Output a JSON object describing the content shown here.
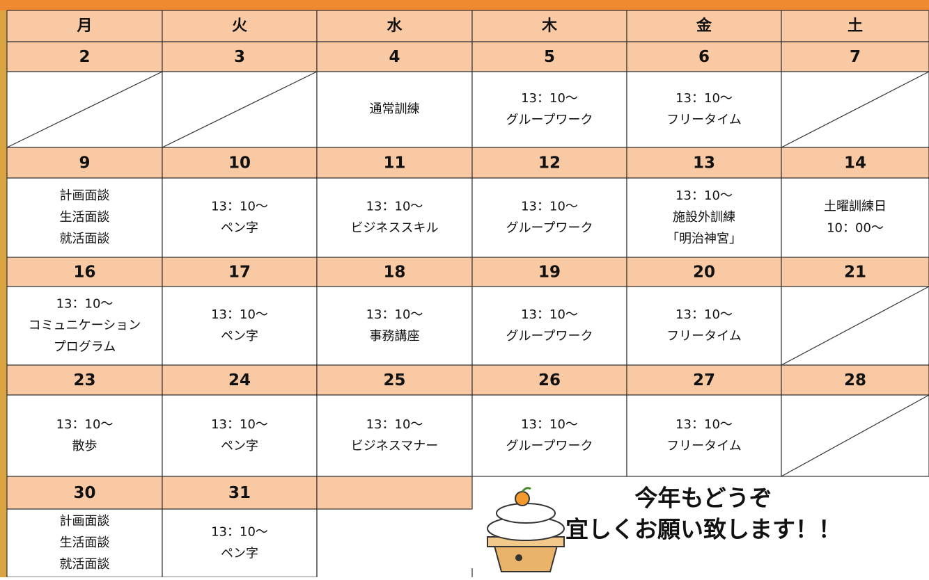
{
  "weekdays": [
    "月",
    "火",
    "水",
    "木",
    "金",
    "土"
  ],
  "weeks": [
    {
      "dates": [
        "2",
        "3",
        "4",
        "5",
        "6",
        "7"
      ],
      "cells": [
        [],
        [],
        [
          "通常訓練"
        ],
        [
          "13：10～",
          "グループワーク"
        ],
        [
          "13：10～",
          "フリータイム"
        ],
        []
      ]
    },
    {
      "dates": [
        "9",
        "10",
        "11",
        "12",
        "13",
        "14"
      ],
      "cells": [
        [
          "計画面談",
          "生活面談",
          "就活面談"
        ],
        [
          "13：10～",
          "ペン字"
        ],
        [
          "13：10～",
          "ビジネススキル"
        ],
        [
          "13：10～",
          "グループワーク"
        ],
        [
          "13：10～",
          "施設外訓練",
          "「明治神宮」"
        ],
        [
          "土曜訓練日",
          "10：00～"
        ]
      ]
    },
    {
      "dates": [
        "16",
        "17",
        "18",
        "19",
        "20",
        "21"
      ],
      "cells": [
        [
          "13：10～",
          "コミュニケーション",
          "プログラム"
        ],
        [
          "13：10～",
          "ペン字"
        ],
        [
          "13：10～",
          "事務講座"
        ],
        [
          "13：10～",
          "グループワーク"
        ],
        [
          "13：10～",
          "フリータイム"
        ],
        []
      ]
    },
    {
      "dates": [
        "23",
        "24",
        "25",
        "26",
        "27",
        "28"
      ],
      "cells": [
        [
          "13：10～",
          "散歩"
        ],
        [
          "13：10～",
          "ペン字"
        ],
        [
          "13：10～",
          "ビジネスマナー"
        ],
        [
          "13：10～",
          "グループワーク"
        ],
        [
          "13：10～",
          "フリータイム"
        ],
        []
      ]
    },
    {
      "dates": [
        "30",
        "31"
      ],
      "cells": [
        [
          "計画面談",
          "生活面談",
          "就活面談"
        ],
        [
          "13：10～",
          "ペン字"
        ]
      ]
    }
  ],
  "greeting": [
    "今年もどうぞ",
    "宜しくお願い致します！！"
  ]
}
